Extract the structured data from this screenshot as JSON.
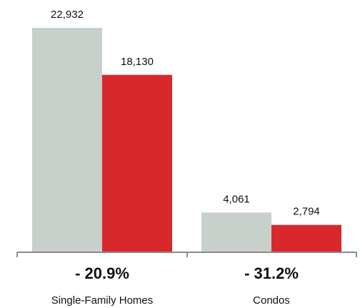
{
  "chart_data": {
    "type": "bar",
    "categories": [
      "Single-Family Homes",
      "Condos"
    ],
    "series": [
      {
        "values": [
          22932,
          4061
        ],
        "color": "#c8d0cc"
      },
      {
        "values": [
          18130,
          2794
        ],
        "color": "#d9282b"
      }
    ],
    "value_labels": [
      [
        "22,932",
        "4,061"
      ],
      [
        "18,130",
        "2,794"
      ]
    ],
    "changes": [
      "- 20.9%",
      "- 31.2%"
    ],
    "ylim": [
      0,
      22932
    ],
    "grid": false,
    "legend": "none"
  }
}
